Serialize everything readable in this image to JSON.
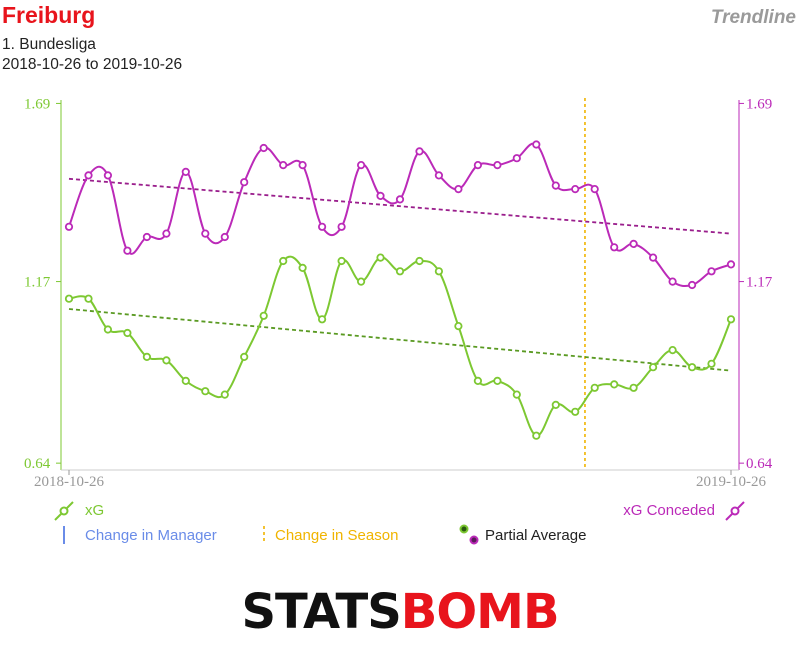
{
  "header": {
    "team": "Freiburg",
    "league": "1. Bundesliga",
    "date_range": "2018-10-26 to 2019-10-26",
    "mode": "Trendline"
  },
  "legend": {
    "xg": "xG",
    "xg_conceded": "xG Conceded",
    "manager_change": "Change in Manager",
    "season_change": "Change in Season",
    "partial_average": "Partial Average"
  },
  "logo": {
    "text": "STATSBOMB",
    "part1": "STATS",
    "part2": "BOMB"
  },
  "colors": {
    "xg": "#7dc832",
    "xg_trend": "#5a9a22",
    "xg_conceded": "#bb2ab8",
    "xg_conceded_trend": "#9a1e8c",
    "season": "#f0b400",
    "manager": "#6a8ce8",
    "title": "#e8141c"
  },
  "chart_data": {
    "type": "line",
    "title": "Freiburg",
    "x_start": "2018-10-26",
    "x_end": "2019-10-26",
    "matches": 35,
    "left_axis": {
      "ticks": [
        0.64,
        1.17,
        1.69
      ],
      "labels": [
        "0.64",
        "1.17",
        "1.69"
      ],
      "range": [
        0.62,
        1.7
      ],
      "color": "#7dc832"
    },
    "right_axis": {
      "ticks": [
        0.64,
        1.17,
        1.69
      ],
      "labels": [
        "0.64",
        "1.17",
        "1.69"
      ],
      "range": [
        0.62,
        1.7
      ],
      "color": "#bb2ab8"
    },
    "x_tick_labels": [
      "2018-10-26",
      "2019-10-26"
    ],
    "season_change_index": 26.5,
    "series": [
      {
        "name": "xG",
        "values": [
          1.12,
          1.12,
          1.03,
          1.02,
          0.95,
          0.94,
          0.88,
          0.85,
          0.84,
          0.95,
          1.07,
          1.23,
          1.21,
          1.06,
          1.23,
          1.17,
          1.24,
          1.2,
          1.23,
          1.2,
          1.04,
          0.88,
          0.88,
          0.84,
          0.72,
          0.81,
          0.79,
          0.86,
          0.87,
          0.86,
          0.92,
          0.97,
          0.92,
          0.93,
          1.06
        ],
        "trend": [
          1.09,
          0.91
        ]
      },
      {
        "name": "xG Conceded",
        "values": [
          1.33,
          1.48,
          1.48,
          1.26,
          1.3,
          1.31,
          1.49,
          1.31,
          1.3,
          1.46,
          1.56,
          1.51,
          1.51,
          1.33,
          1.33,
          1.51,
          1.42,
          1.41,
          1.55,
          1.48,
          1.44,
          1.51,
          1.51,
          1.53,
          1.57,
          1.45,
          1.44,
          1.44,
          1.27,
          1.28,
          1.24,
          1.17,
          1.16,
          1.2,
          1.22
        ],
        "trend": [
          1.47,
          1.31
        ]
      }
    ]
  }
}
